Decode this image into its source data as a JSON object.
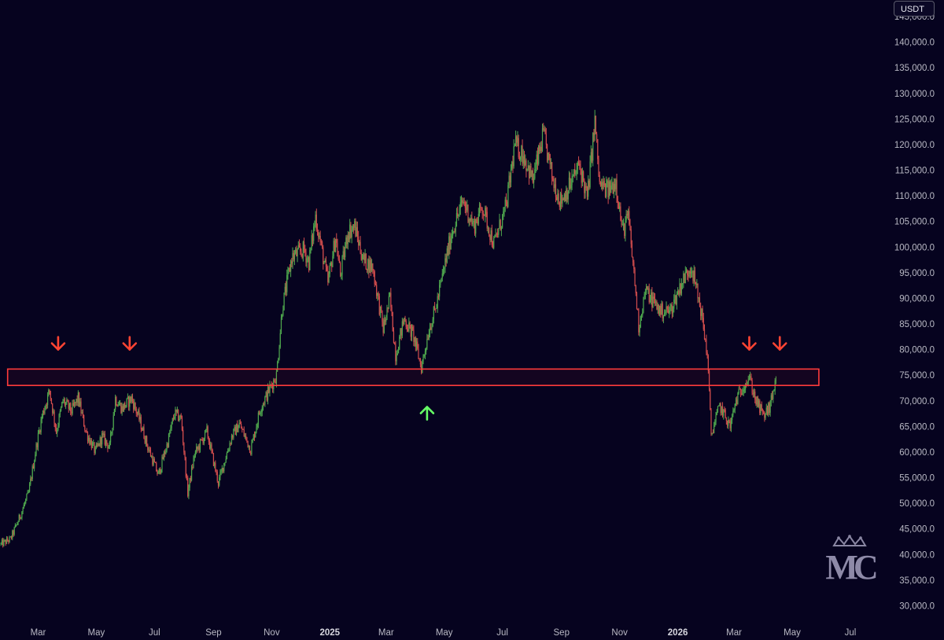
{
  "chart_data": {
    "type": "candlestick",
    "unit": "USDT",
    "y_axis_side": "right",
    "ylim": [
      27000,
      147000
    ],
    "y_ticks": [
      30000,
      35000,
      40000,
      45000,
      50000,
      55000,
      60000,
      65000,
      70000,
      75000,
      80000,
      85000,
      90000,
      95000,
      100000,
      105000,
      110000,
      115000,
      120000,
      125000,
      130000,
      135000,
      140000,
      145000
    ],
    "y_tick_labels": [
      "30,000.0",
      "35,000.0",
      "40,000.0",
      "45,000.0",
      "50,000.0",
      "55,000.0",
      "60,000.0",
      "65,000.0",
      "70,000.0",
      "75,000.0",
      "80,000.0",
      "85,000.0",
      "90,000.0",
      "95,000.0",
      "100,000.0",
      "105,000.0",
      "110,000.0",
      "115,000.0",
      "120,000.0",
      "125,000.0",
      "130,000.0",
      "135,000.0",
      "140,000.0",
      "145,000.0"
    ],
    "x_ticks": [
      {
        "label": "Mar",
        "date": "2024-03-01",
        "bold": false
      },
      {
        "label": "May",
        "date": "2024-05-01",
        "bold": false
      },
      {
        "label": "Jul",
        "date": "2024-07-01",
        "bold": false
      },
      {
        "label": "Sep",
        "date": "2024-09-01",
        "bold": false
      },
      {
        "label": "Nov",
        "date": "2024-11-01",
        "bold": false
      },
      {
        "label": "2025",
        "date": "2025-01-01",
        "bold": true
      },
      {
        "label": "Mar",
        "date": "2025-03-01",
        "bold": false
      },
      {
        "label": "May",
        "date": "2025-05-01",
        "bold": false
      },
      {
        "label": "Jul",
        "date": "2025-07-01",
        "bold": false
      },
      {
        "label": "Sep",
        "date": "2025-09-01",
        "bold": false
      },
      {
        "label": "Nov",
        "date": "2025-11-01",
        "bold": false
      },
      {
        "label": "2026",
        "date": "2026-01-01",
        "bold": true
      },
      {
        "label": "Mar",
        "date": "2026-03-01",
        "bold": false
      },
      {
        "label": "May",
        "date": "2026-05-01",
        "bold": false
      },
      {
        "label": "Jul",
        "date": "2026-07-01",
        "bold": false
      }
    ],
    "xlim": [
      "2024-01-21",
      "2026-07-25"
    ],
    "price_path": [
      [
        "2024-01-22",
        42000
      ],
      [
        "2024-02-01",
        43000
      ],
      [
        "2024-02-10",
        47000
      ],
      [
        "2024-02-20",
        52000
      ],
      [
        "2024-02-28",
        61000
      ],
      [
        "2024-03-05",
        67000
      ],
      [
        "2024-03-13",
        72000
      ],
      [
        "2024-03-20",
        64000
      ],
      [
        "2024-03-27",
        70000
      ],
      [
        "2024-04-05",
        68000
      ],
      [
        "2024-04-12",
        70500
      ],
      [
        "2024-04-20",
        64000
      ],
      [
        "2024-04-30",
        60000
      ],
      [
        "2024-05-07",
        63000
      ],
      [
        "2024-05-15",
        61000
      ],
      [
        "2024-05-21",
        70500
      ],
      [
        "2024-05-28",
        68500
      ],
      [
        "2024-06-07",
        70500
      ],
      [
        "2024-06-15",
        66500
      ],
      [
        "2024-06-24",
        61000
      ],
      [
        "2024-07-05",
        55500
      ],
      [
        "2024-07-15",
        62000
      ],
      [
        "2024-07-22",
        67500
      ],
      [
        "2024-07-29",
        66500
      ],
      [
        "2024-08-05",
        52000
      ],
      [
        "2024-08-12",
        59500
      ],
      [
        "2024-08-25",
        64000
      ],
      [
        "2024-09-06",
        54000
      ],
      [
        "2024-09-20",
        63000
      ],
      [
        "2024-09-28",
        65500
      ],
      [
        "2024-10-10",
        60500
      ],
      [
        "2024-10-20",
        68500
      ],
      [
        "2024-10-29",
        72000
      ],
      [
        "2024-11-06",
        75000
      ],
      [
        "2024-11-12",
        88000
      ],
      [
        "2024-11-22",
        98000
      ],
      [
        "2024-12-05",
        99500
      ],
      [
        "2024-12-10",
        97000
      ],
      [
        "2024-12-17",
        106000
      ],
      [
        "2024-12-30",
        93000
      ],
      [
        "2025-01-07",
        102000
      ],
      [
        "2025-01-12",
        94500
      ],
      [
        "2025-01-20",
        103000
      ],
      [
        "2025-01-27",
        104000
      ],
      [
        "2025-02-05",
        97500
      ],
      [
        "2025-02-15",
        96000
      ],
      [
        "2025-02-26",
        84000
      ],
      [
        "2025-03-05",
        90000
      ],
      [
        "2025-03-11",
        79000
      ],
      [
        "2025-03-20",
        86000
      ],
      [
        "2025-03-30",
        82500
      ],
      [
        "2025-04-07",
        76500
      ],
      [
        "2025-04-15",
        84000
      ],
      [
        "2025-04-22",
        88000
      ],
      [
        "2025-05-01",
        96000
      ],
      [
        "2025-05-09",
        103000
      ],
      [
        "2025-05-21",
        109000
      ],
      [
        "2025-06-01",
        104000
      ],
      [
        "2025-06-10",
        108000
      ],
      [
        "2025-06-22",
        100500
      ],
      [
        "2025-07-05",
        108000
      ],
      [
        "2025-07-14",
        120000
      ],
      [
        "2025-07-23",
        118000
      ],
      [
        "2025-08-02",
        113000
      ],
      [
        "2025-08-13",
        122000
      ],
      [
        "2025-08-23",
        113000
      ],
      [
        "2025-08-31",
        109000
      ],
      [
        "2025-09-08",
        111500
      ],
      [
        "2025-09-20",
        116000
      ],
      [
        "2025-09-28",
        109500
      ],
      [
        "2025-10-06",
        124500
      ],
      [
        "2025-10-11",
        112000
      ],
      [
        "2025-10-20",
        111000
      ],
      [
        "2025-10-28",
        113000
      ],
      [
        "2025-11-04",
        103000
      ],
      [
        "2025-11-10",
        106000
      ],
      [
        "2025-11-17",
        93000
      ],
      [
        "2025-11-21",
        84500
      ],
      [
        "2025-11-28",
        91500
      ],
      [
        "2025-12-06",
        89500
      ],
      [
        "2025-12-14",
        87500
      ],
      [
        "2025-12-24",
        87500
      ],
      [
        "2026-01-05",
        93000
      ],
      [
        "2026-01-15",
        96500
      ],
      [
        "2026-01-25",
        88000
      ],
      [
        "2026-02-01",
        79000
      ],
      [
        "2026-02-05",
        63500
      ],
      [
        "2026-02-14",
        69000
      ],
      [
        "2026-02-25",
        65000
      ],
      [
        "2026-03-03",
        70000
      ],
      [
        "2026-03-12",
        73500
      ],
      [
        "2026-03-17",
        74500
      ],
      [
        "2026-03-24",
        70000
      ],
      [
        "2026-04-01",
        67000
      ],
      [
        "2026-04-08",
        69000
      ],
      [
        "2026-04-14",
        74500
      ]
    ]
  },
  "annotations": {
    "resistance_zone": {
      "y_low": 73000,
      "y_high": 76200,
      "x_from": "2024-01-29",
      "x_to": "2026-05-29",
      "color": "#ff3b3b"
    },
    "arrows": [
      {
        "dir": "down",
        "date": "2024-03-22",
        "y": 80000,
        "color": "#ff4433"
      },
      {
        "dir": "down",
        "date": "2024-06-05",
        "y": 80000,
        "color": "#ff4433"
      },
      {
        "dir": "up",
        "date": "2025-04-13",
        "y": 68800,
        "color": "#66ff66"
      },
      {
        "dir": "down",
        "date": "2026-03-17",
        "y": 80000,
        "color": "#ff4433"
      },
      {
        "dir": "down",
        "date": "2026-04-18",
        "y": 80000,
        "color": "#ff4433"
      }
    ]
  },
  "colors": {
    "up": "#4fa84e",
    "down": "#d24d4d",
    "background": "#06031f",
    "axis_text": "#b9b9c4"
  },
  "unit_badge": "USDT",
  "logo_text": "MC"
}
